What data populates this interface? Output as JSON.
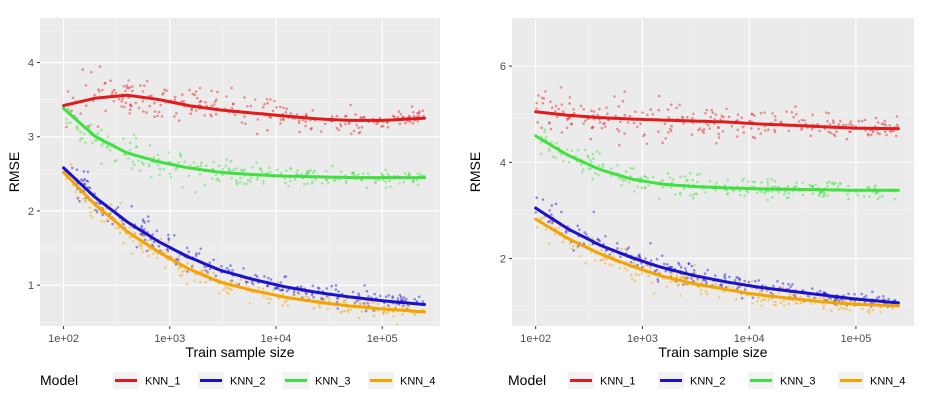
{
  "colors": {
    "KNN_1": "#e31a1c",
    "KNN_2": "#1b10cc",
    "KNN_3": "#3fe03f",
    "KNN_4": "#f5a300"
  },
  "chart_data": [
    {
      "type": "scatter",
      "xscale": "log10",
      "xlabel": "Train sample size",
      "ylabel": "RMSE",
      "xlim": [
        60,
        350000
      ],
      "ylim": [
        0.45,
        4.6
      ],
      "xticks": [
        100,
        1000,
        10000,
        100000
      ],
      "xtick_labels": [
        "1e+02",
        "1e+03",
        "1e+04",
        "1e+05"
      ],
      "yticks": [
        1,
        2,
        3,
        4
      ],
      "ytick_labels": [
        "1",
        "2",
        "3",
        "4"
      ],
      "grid": true,
      "legend_title": "Model",
      "legend_position": "bottom",
      "series": [
        {
          "name": "KNN_1",
          "trend": {
            "x": [
              100,
              200,
              400,
              800,
              1500,
              3000,
              6000,
              12000,
              25000,
              50000,
              100000,
              250000
            ],
            "y": [
              3.42,
              3.52,
              3.56,
              3.5,
              3.42,
              3.36,
              3.32,
              3.28,
              3.24,
              3.22,
              3.22,
              3.25
            ]
          },
          "noise": 0.3
        },
        {
          "name": "KNN_2",
          "trend": {
            "x": [
              100,
              200,
              400,
              800,
              1500,
              3000,
              6000,
              12000,
              25000,
              50000,
              100000,
              250000
            ],
            "y": [
              2.58,
              2.18,
              1.85,
              1.58,
              1.38,
              1.2,
              1.08,
              0.98,
              0.9,
              0.84,
              0.79,
              0.74
            ]
          },
          "noise": 0.22
        },
        {
          "name": "KNN_3",
          "trend": {
            "x": [
              100,
              200,
              400,
              800,
              1500,
              3000,
              6000,
              12000,
              25000,
              50000,
              100000,
              250000
            ],
            "y": [
              3.38,
              3.0,
              2.78,
              2.66,
              2.58,
              2.52,
              2.49,
              2.47,
              2.46,
              2.45,
              2.45,
              2.45
            ]
          },
          "noise": 0.25
        },
        {
          "name": "KNN_4",
          "trend": {
            "x": [
              100,
              200,
              400,
              800,
              1500,
              3000,
              6000,
              12000,
              25000,
              50000,
              100000,
              250000
            ],
            "y": [
              2.52,
              2.08,
              1.72,
              1.44,
              1.22,
              1.04,
              0.93,
              0.84,
              0.77,
              0.72,
              0.68,
              0.64
            ]
          },
          "noise": 0.22
        }
      ]
    },
    {
      "type": "scatter",
      "xscale": "log10",
      "xlabel": "Train sample size",
      "ylabel": "RMSE",
      "xlim": [
        60,
        350000
      ],
      "ylim": [
        0.6,
        7.0
      ],
      "xticks": [
        100,
        1000,
        10000,
        100000
      ],
      "xtick_labels": [
        "1e+02",
        "1e+03",
        "1e+04",
        "1e+05"
      ],
      "yticks": [
        2,
        4,
        6
      ],
      "ytick_labels": [
        "2",
        "4",
        "6"
      ],
      "grid": true,
      "legend_title": "Model",
      "legend_position": "bottom",
      "series": [
        {
          "name": "KNN_1",
          "trend": {
            "x": [
              100,
              200,
              400,
              800,
              1500,
              3000,
              6000,
              12000,
              25000,
              50000,
              100000,
              250000
            ],
            "y": [
              5.05,
              4.98,
              4.93,
              4.9,
              4.88,
              4.86,
              4.84,
              4.8,
              4.77,
              4.74,
              4.71,
              4.7
            ]
          },
          "noise": 0.45
        },
        {
          "name": "KNN_2",
          "trend": {
            "x": [
              100,
              200,
              400,
              800,
              1500,
              3000,
              6000,
              12000,
              25000,
              50000,
              100000,
              250000
            ],
            "y": [
              3.05,
              2.62,
              2.28,
              2.02,
              1.82,
              1.65,
              1.52,
              1.41,
              1.32,
              1.24,
              1.16,
              1.08
            ]
          },
          "noise": 0.3
        },
        {
          "name": "KNN_3",
          "trend": {
            "x": [
              100,
              200,
              400,
              800,
              1500,
              3000,
              6000,
              12000,
              25000,
              50000,
              100000,
              250000
            ],
            "y": [
              4.55,
              4.15,
              3.85,
              3.65,
              3.55,
              3.5,
              3.47,
              3.45,
              3.44,
              3.43,
              3.42,
              3.42
            ]
          },
          "noise": 0.3
        },
        {
          "name": "KNN_4",
          "trend": {
            "x": [
              100,
              200,
              400,
              800,
              1500,
              3000,
              6000,
              12000,
              25000,
              50000,
              100000,
              250000
            ],
            "y": [
              2.82,
              2.42,
              2.1,
              1.84,
              1.64,
              1.48,
              1.36,
              1.25,
              1.17,
              1.1,
              1.05,
              1.02
            ]
          },
          "noise": 0.3
        }
      ]
    }
  ]
}
